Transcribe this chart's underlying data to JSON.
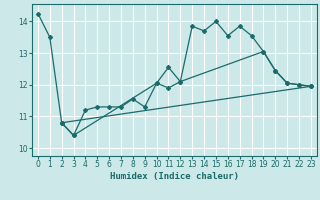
{
  "xlabel": "Humidex (Indice chaleur)",
  "bg_color": "#cce8e8",
  "grid_color": "#ffffff",
  "line_color": "#1a6b6b",
  "xlim": [
    -0.5,
    23.5
  ],
  "ylim": [
    9.75,
    14.55
  ],
  "yticks": [
    10,
    11,
    12,
    13,
    14
  ],
  "xticks": [
    0,
    1,
    2,
    3,
    4,
    5,
    6,
    7,
    8,
    9,
    10,
    11,
    12,
    13,
    14,
    15,
    16,
    17,
    18,
    19,
    20,
    21,
    22,
    23
  ],
  "line1_x": [
    0,
    1,
    2,
    3,
    10,
    11,
    12,
    13,
    14,
    15,
    16,
    17,
    18,
    19,
    20,
    21,
    22,
    23
  ],
  "line1_y": [
    14.25,
    13.5,
    10.8,
    10.4,
    12.05,
    12.55,
    12.1,
    13.85,
    13.7,
    14.0,
    13.55,
    13.85,
    13.55,
    13.05,
    12.45,
    12.05,
    12.0,
    11.95
  ],
  "line2_x": [
    2,
    3,
    4,
    5,
    6,
    7,
    8,
    9,
    10,
    11,
    12,
    19,
    20,
    21,
    22,
    23
  ],
  "line2_y": [
    10.8,
    10.4,
    11.2,
    11.3,
    11.3,
    11.3,
    11.55,
    11.3,
    12.05,
    11.9,
    12.1,
    13.05,
    12.45,
    12.05,
    12.0,
    11.95
  ],
  "line3_x": [
    2,
    23
  ],
  "line3_y": [
    10.8,
    11.95
  ]
}
